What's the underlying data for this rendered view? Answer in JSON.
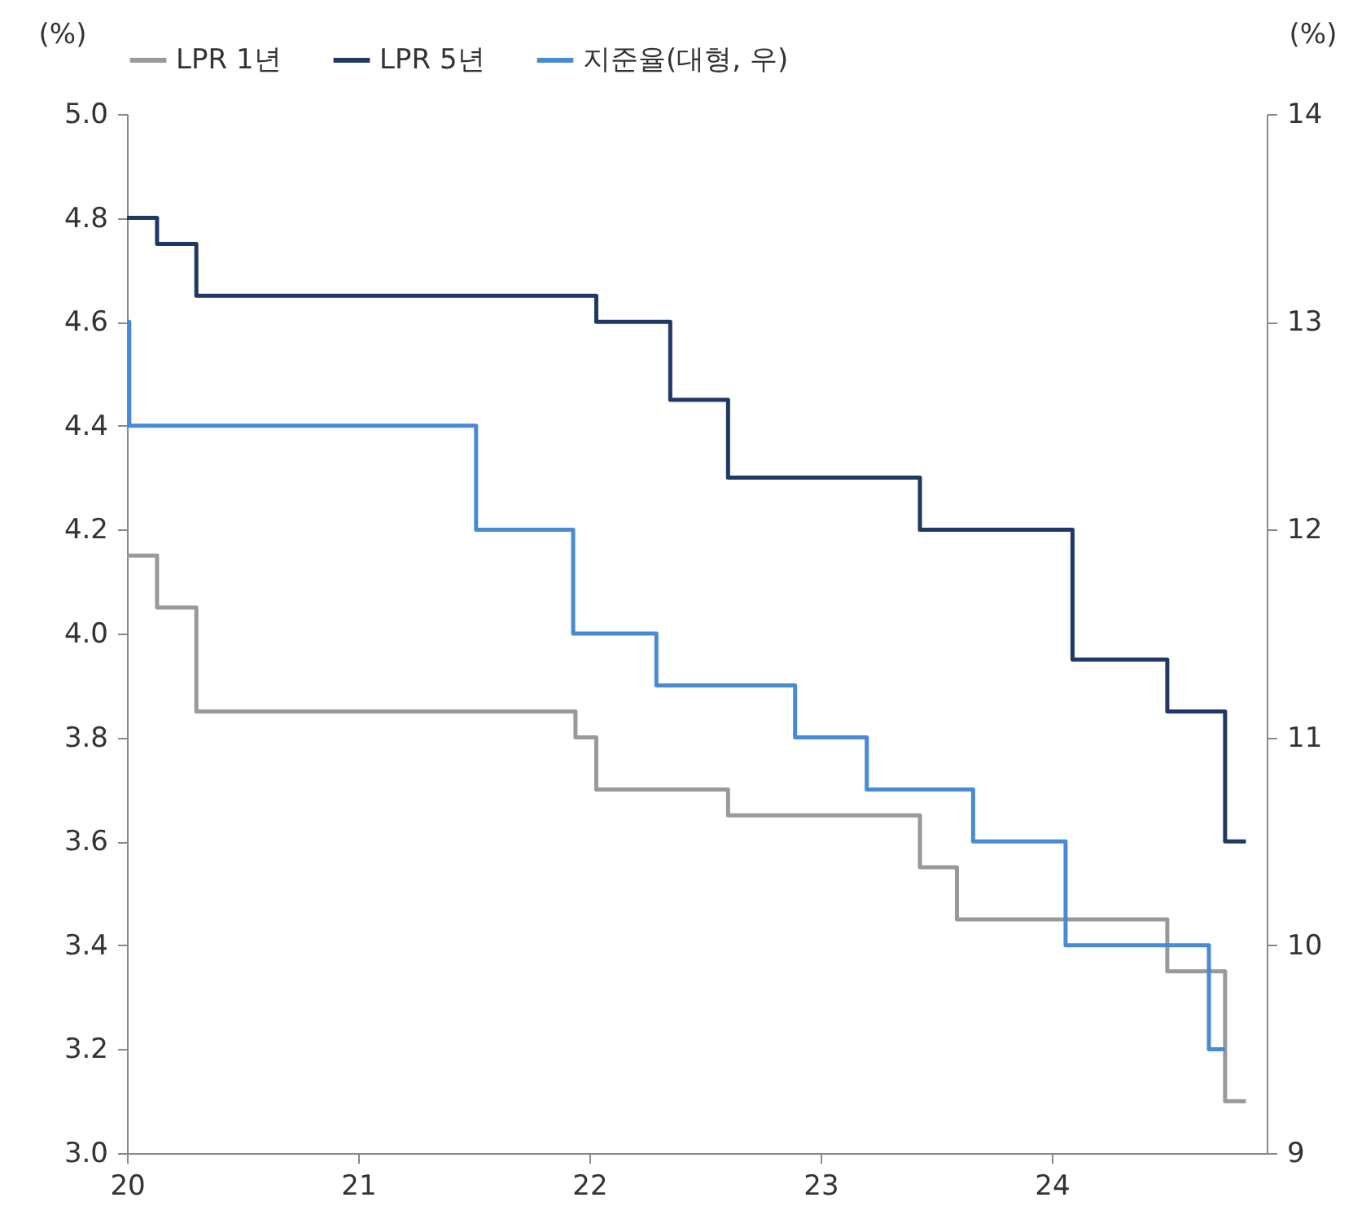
{
  "chart_data": {
    "type": "step",
    "ylabel": "(%)",
    "y2label": "(%)",
    "xlim": [
      2020,
      2024.93
    ],
    "xticks": [
      {
        "value": 2020,
        "label": "20"
      },
      {
        "value": 2021,
        "label": "21"
      },
      {
        "value": 2022,
        "label": "22"
      },
      {
        "value": 2023,
        "label": "23"
      },
      {
        "value": 2024,
        "label": "24"
      }
    ],
    "ylim": [
      3,
      5
    ],
    "yticks": [
      {
        "value": 3,
        "label": "3.0"
      },
      3.2,
      3.4,
      3.6,
      3.8,
      {
        "value": 4,
        "label": "4.0"
      },
      4.2,
      4.4,
      4.6,
      4.8,
      {
        "value": 5,
        "label": "5.0"
      }
    ],
    "y2lim": [
      9,
      14
    ],
    "y2ticks": [
      9,
      10,
      11,
      12,
      13,
      14
    ],
    "grid": false,
    "legend": "top",
    "line_style": "solid",
    "marker": "none",
    "series": [
      {
        "name": "LPR 1년",
        "color": "#999999",
        "x": [
          2020,
          2020.13,
          2020.3,
          2021.94,
          2022.03,
          2022.6,
          2023.43,
          2023.59,
          2024.5,
          2024.75,
          2024.84
        ],
        "values": [
          4.15,
          4.05,
          3.85,
          3.8,
          3.7,
          3.65,
          3.55,
          3.45,
          3.35,
          3.1,
          3.1
        ]
      },
      {
        "name": "LPR 5년",
        "color": "#1f3864",
        "x": [
          2020,
          2020.13,
          2020.3,
          2022.03,
          2022.35,
          2022.6,
          2023.43,
          2024.09,
          2024.5,
          2024.75,
          2024.84
        ],
        "values": [
          4.8,
          4.75,
          4.65,
          4.6,
          4.45,
          4.3,
          4.2,
          3.95,
          3.85,
          3.6,
          3.6
        ]
      },
      {
        "name": "지준율(대형, 우)",
        "color": "#4a8ad4",
        "axis": "y2",
        "x": [
          2020,
          2020.01,
          2021.51,
          2021.93,
          2022.29,
          2022.89,
          2023.2,
          2023.66,
          2024.06,
          2024.68,
          2024.75
        ],
        "values": [
          13,
          12.5,
          12,
          11.5,
          11.25,
          11,
          10.75,
          10.5,
          10,
          9.5,
          9.5
        ]
      }
    ]
  }
}
